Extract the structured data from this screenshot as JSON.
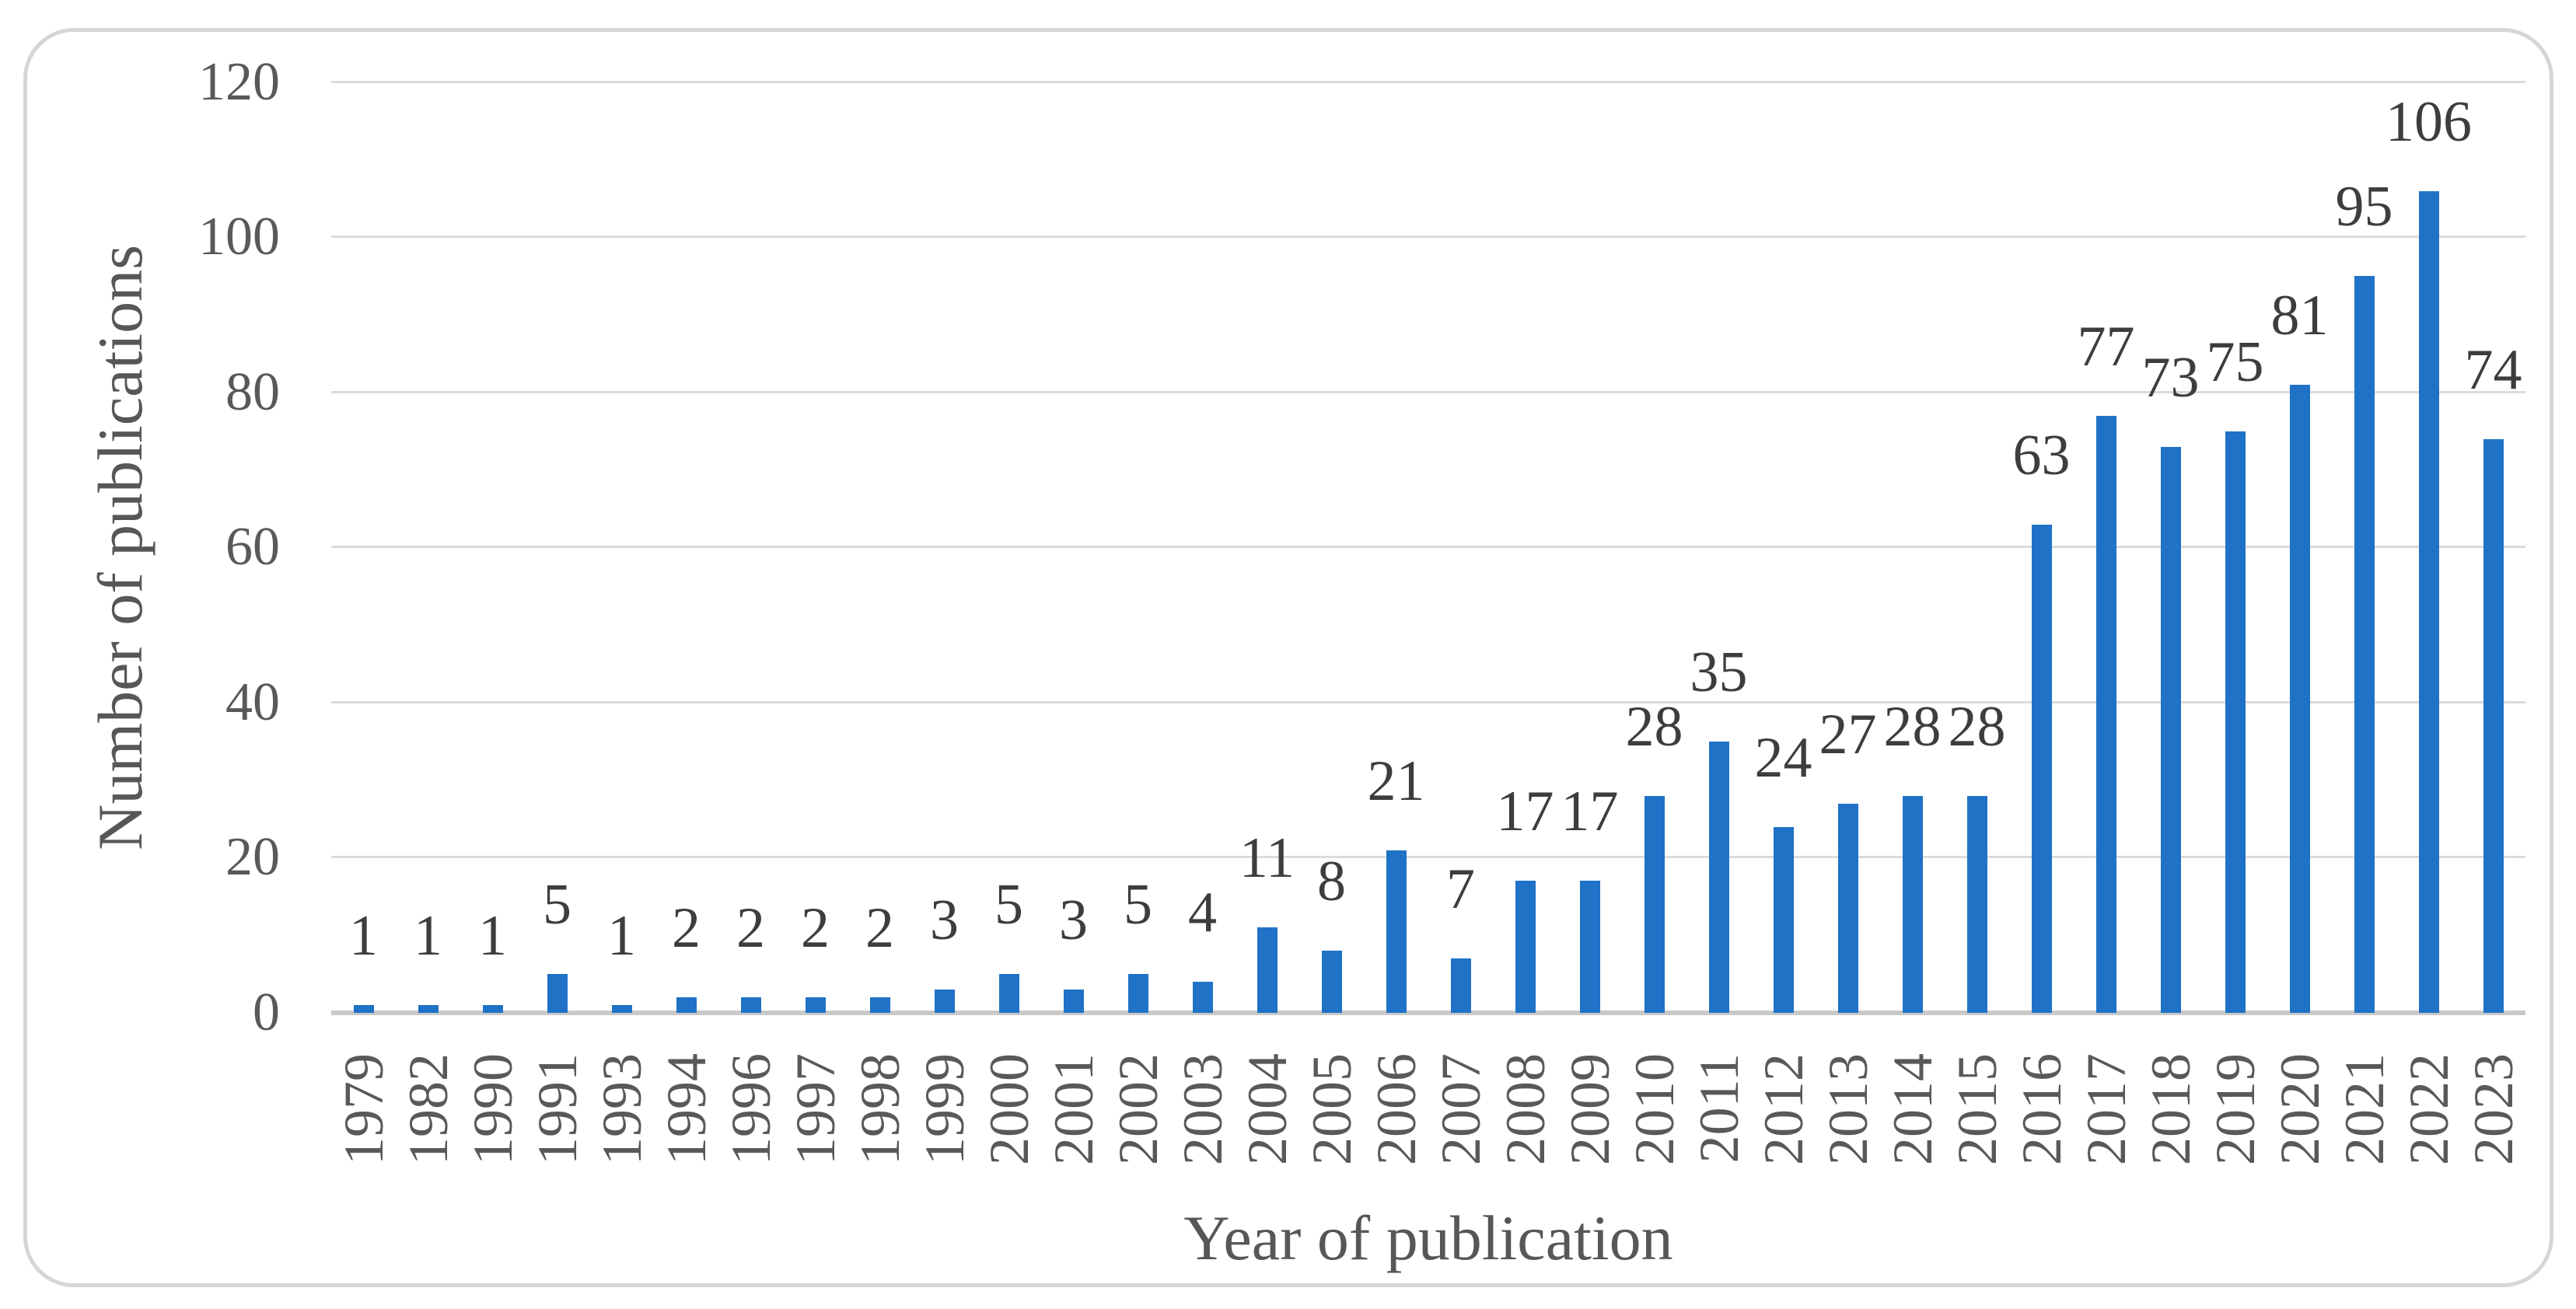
{
  "chart_data": {
    "type": "bar",
    "title": "",
    "xlabel": "Year of publication",
    "ylabel": "Number of publications",
    "categories": [
      "1979",
      "1982",
      "1990",
      "1991",
      "1993",
      "1994",
      "1996",
      "1997",
      "1998",
      "1999",
      "2000",
      "2001",
      "2002",
      "2003",
      "2004",
      "2005",
      "2006",
      "2007",
      "2008",
      "2009",
      "2010",
      "2011",
      "2012",
      "2013",
      "2014",
      "2015",
      "2016",
      "2017",
      "2018",
      "2019",
      "2020",
      "2021",
      "2022",
      "2023"
    ],
    "values": [
      1,
      1,
      1,
      5,
      1,
      2,
      2,
      2,
      2,
      3,
      5,
      3,
      5,
      4,
      11,
      8,
      21,
      7,
      17,
      17,
      28,
      35,
      24,
      27,
      28,
      28,
      63,
      77,
      73,
      75,
      81,
      95,
      106,
      74
    ],
    "yticks": [
      0,
      20,
      40,
      60,
      80,
      100,
      120
    ],
    "ylim": [
      0,
      120
    ],
    "grid": true,
    "legend": "none",
    "bar_color": "#1f72c6",
    "grid_color": "#dbdbdb",
    "axis_line_color": "#c9c9c9",
    "value_label_color": "#3d3d3d",
    "axis_text_color": "#595959"
  }
}
